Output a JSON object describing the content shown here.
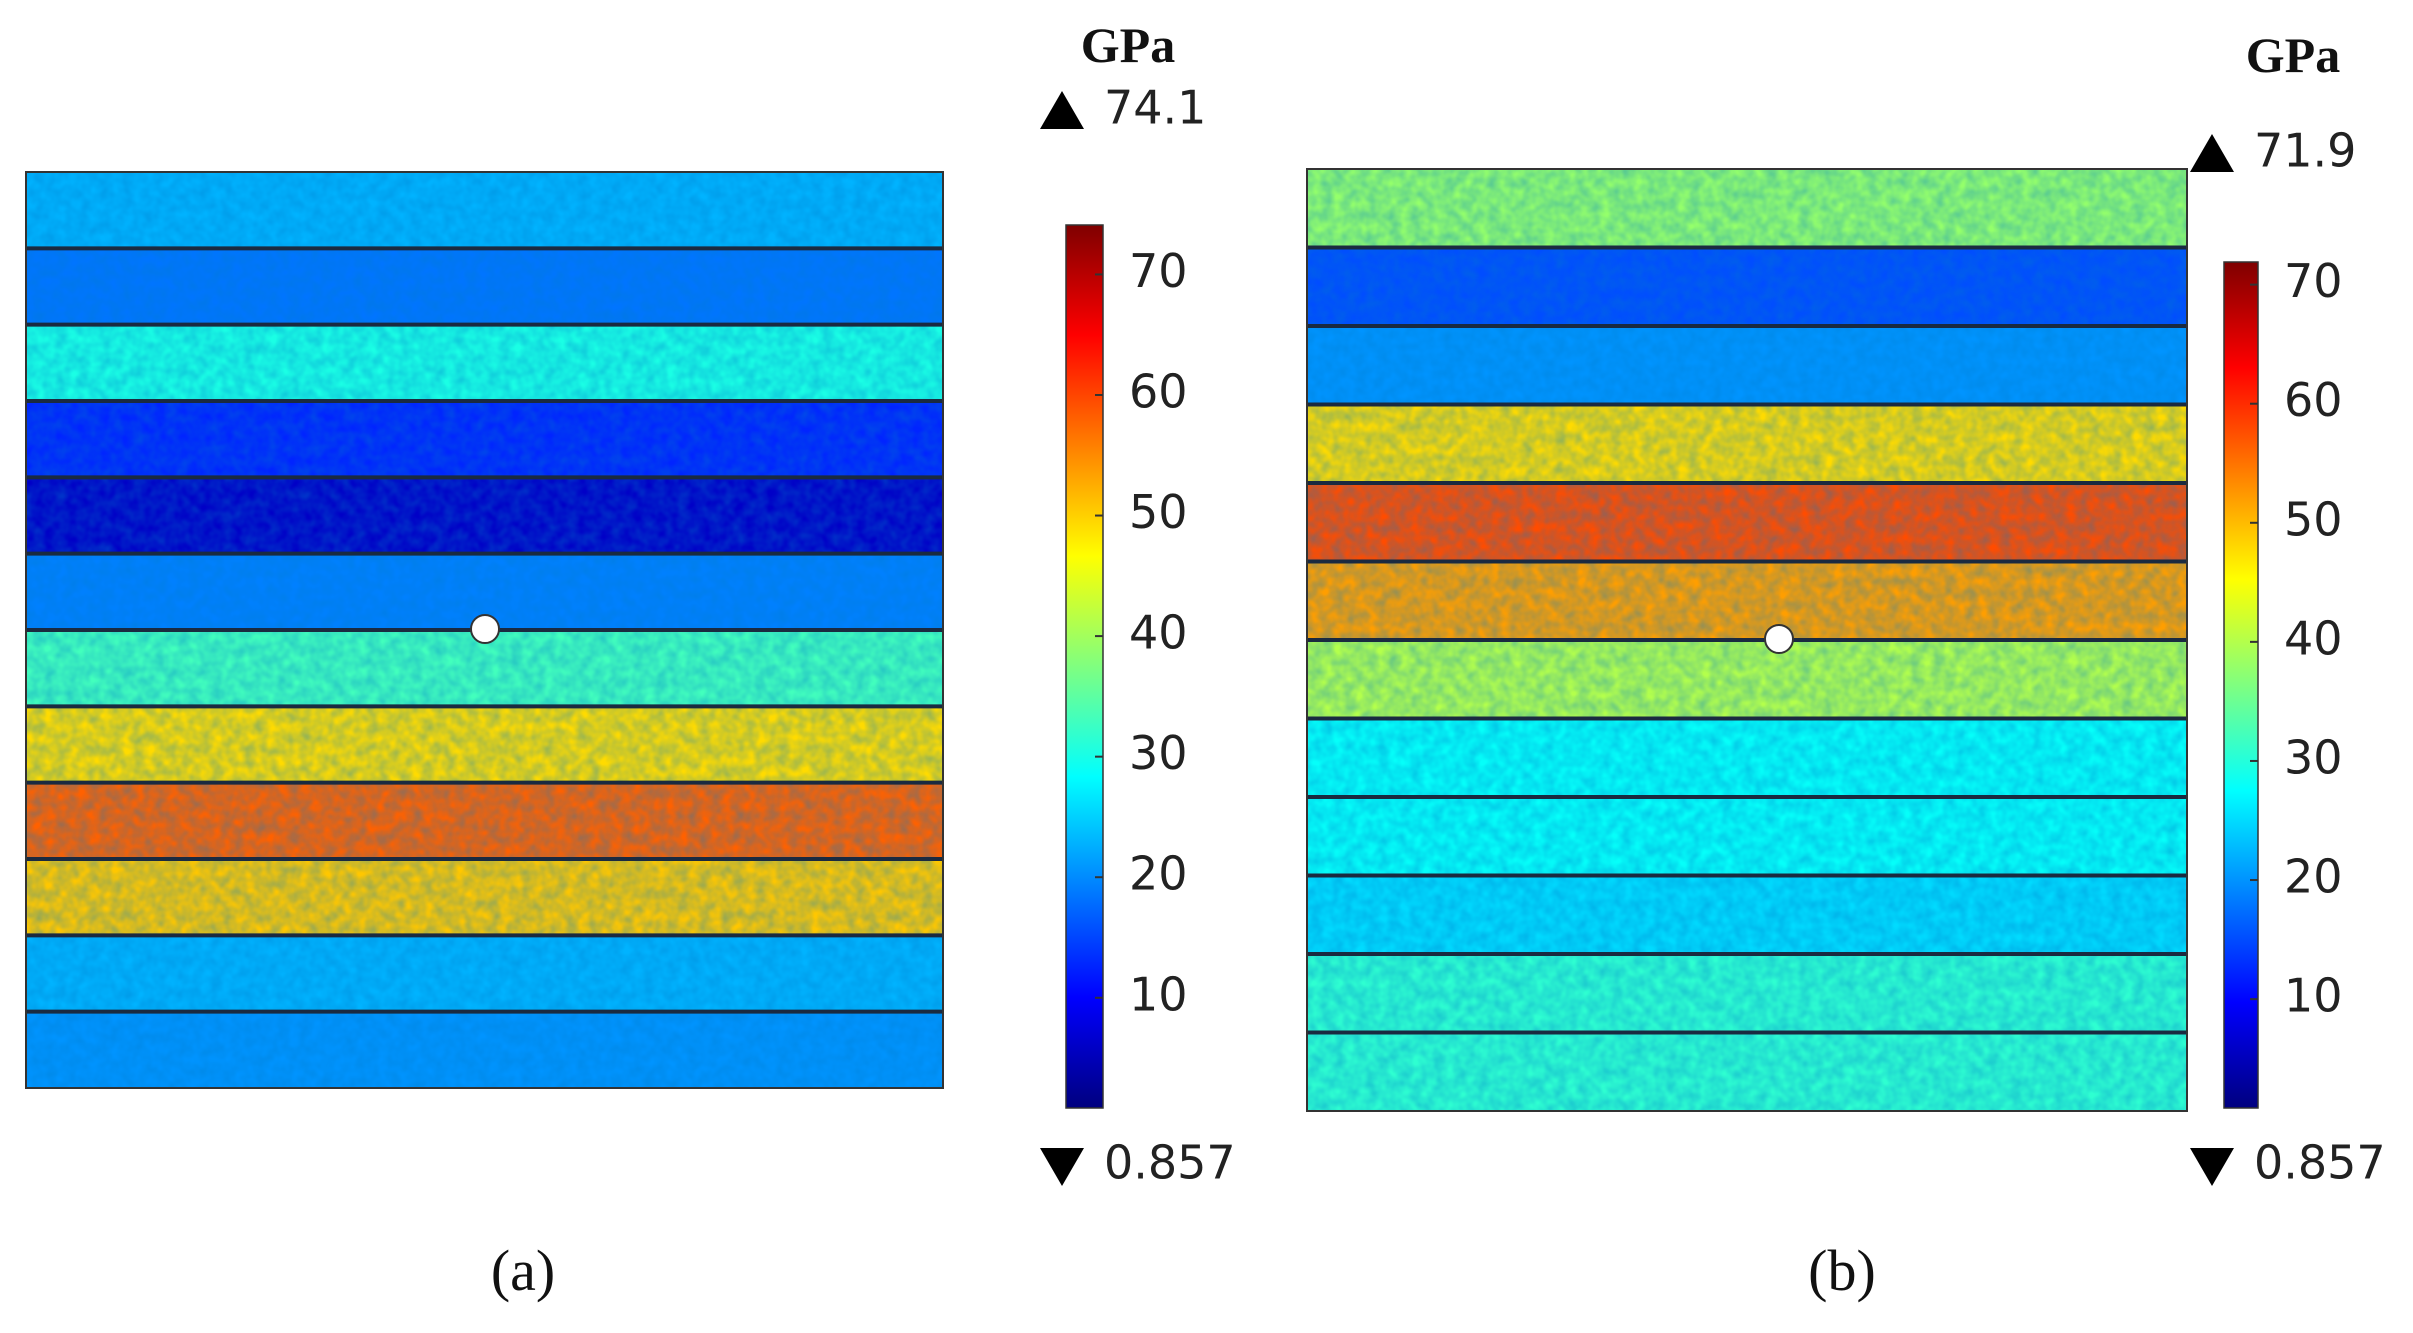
{
  "panels": [
    {
      "label": "(a)",
      "unit": "GPa",
      "max": 74.1,
      "min": 0.857,
      "colorbar": {
        "lim": [
          0.857,
          74.1
        ],
        "ticks": [
          10,
          20,
          30,
          40,
          50,
          60,
          70
        ]
      }
    },
    {
      "label": "(b)",
      "unit": "GPa",
      "max": 71.9,
      "min": 0.857,
      "colorbar": {
        "lim": [
          0.857,
          71.9
        ],
        "ticks": [
          10,
          20,
          30,
          40,
          50,
          60,
          70
        ]
      }
    }
  ]
}
